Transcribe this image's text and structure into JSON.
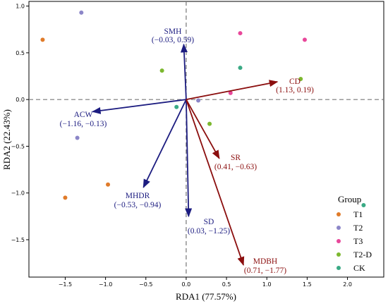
{
  "chart_data": {
    "type": "scatter",
    "xlabel": "RDA1 (77.57%)",
    "ylabel": "RDA2 (22.43%)",
    "xlim": [
      -1.95,
      2.45
    ],
    "ylim": [
      -1.9,
      1.05
    ],
    "xticks": [
      -1.5,
      -1.0,
      -0.5,
      0.0,
      0.5,
      1.0,
      1.5,
      2.0
    ],
    "xtick_labels": [
      "−1.5",
      "−1.0",
      "−0.5",
      "0.0",
      "0.5",
      "1.0",
      "1.5",
      "2.0"
    ],
    "yticks": [
      -1.5,
      -1.0,
      -0.5,
      0.0,
      0.5,
      1.0
    ],
    "ytick_labels": [
      "−1.5",
      "−1.0",
      "−0.5",
      "0.0",
      "0.5",
      "1.0"
    ],
    "grid": false,
    "legend_position": "bottom-right",
    "legend_title": "Group",
    "series": [
      {
        "name": "T1",
        "color": "#e07b2a",
        "points": [
          [
            -1.78,
            0.64
          ],
          [
            -0.97,
            -0.91
          ],
          [
            -1.5,
            -1.05
          ]
        ]
      },
      {
        "name": "T2",
        "color": "#8c86c8",
        "points": [
          [
            -1.3,
            0.93
          ],
          [
            -1.35,
            -0.41
          ],
          [
            0.15,
            -0.01
          ]
        ]
      },
      {
        "name": "T3",
        "color": "#e8479a",
        "points": [
          [
            0.67,
            0.71
          ],
          [
            1.47,
            0.64
          ],
          [
            0.55,
            0.07
          ]
        ]
      },
      {
        "name": "T2-D",
        "color": "#7cb82f",
        "points": [
          [
            -0.3,
            0.31
          ],
          [
            1.42,
            0.22
          ],
          [
            0.29,
            -0.26
          ]
        ]
      },
      {
        "name": "CK",
        "color": "#3aaa85",
        "points": [
          [
            0.67,
            0.34
          ],
          [
            -0.12,
            -0.08
          ],
          [
            2.2,
            -1.13
          ]
        ]
      }
    ],
    "vectors": [
      {
        "name": "SMH",
        "x": -0.03,
        "y": 0.59,
        "color": "#1c1c80",
        "label": "SMH",
        "coords": "(−0.03, 0.59)"
      },
      {
        "name": "CD",
        "x": 1.13,
        "y": 0.19,
        "color": "#8b0e0e",
        "label": "CD",
        "coords": "(1.13, 0.19)"
      },
      {
        "name": "ACW",
        "x": -1.16,
        "y": -0.13,
        "color": "#1c1c80",
        "label": "ACW",
        "coords": "(−1.16, −0.13)"
      },
      {
        "name": "SR",
        "x": 0.41,
        "y": -0.63,
        "color": "#8b0e0e",
        "label": "SR",
        "coords": "(0.41, −0.63)"
      },
      {
        "name": "MHDR",
        "x": -0.53,
        "y": -0.94,
        "color": "#1c1c80",
        "label": "MHDR",
        "coords": "(−0.53, −0.94)"
      },
      {
        "name": "SD",
        "x": 0.03,
        "y": -1.25,
        "color": "#1c1c80",
        "label": "SD",
        "coords": "(0.03, −1.25)"
      },
      {
        "name": "MDBH",
        "x": 0.71,
        "y": -1.77,
        "color": "#8b0e0e",
        "label": "MDBH",
        "coords": "(0.71, −1.77)"
      }
    ]
  }
}
